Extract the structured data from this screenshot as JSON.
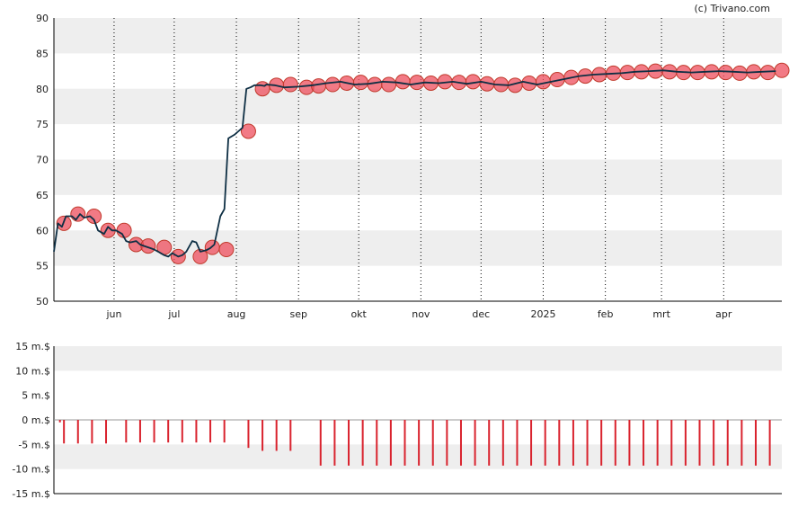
{
  "copyright": "(c) Trivano.com",
  "colors": {
    "band": "#eeeeee",
    "price_line": "#0e2f44",
    "marker_fill": "#ee4e5c",
    "marker_stroke": "#c0392b",
    "volume_bar": "#d9232e"
  },
  "chart_data": [
    {
      "type": "line",
      "name": "price",
      "ylim": [
        50,
        90
      ],
      "yticks": [
        "50",
        "55",
        "60",
        "65",
        "70",
        "75",
        "80",
        "85",
        "90"
      ],
      "grid": true,
      "x_range": [
        "2024-05-02",
        "2025-04-30"
      ],
      "month_ticks": [
        {
          "date": "2024-06-01",
          "label": "jun"
        },
        {
          "date": "2024-07-01",
          "label": "jul"
        },
        {
          "date": "2024-08-01",
          "label": "aug"
        },
        {
          "date": "2024-09-01",
          "label": "sep"
        },
        {
          "date": "2024-10-01",
          "label": "okt"
        },
        {
          "date": "2024-11-01",
          "label": "nov"
        },
        {
          "date": "2024-12-01",
          "label": "dec"
        },
        {
          "date": "2025-01-01",
          "label": "2025"
        },
        {
          "date": "2025-02-01",
          "label": "feb"
        },
        {
          "date": "2025-03-01",
          "label": "mrt"
        },
        {
          "date": "2025-04-01",
          "label": "apr"
        }
      ],
      "series": [
        {
          "x": [
            "2024-05-02",
            "2024-05-04",
            "2024-05-06",
            "2024-05-08",
            "2024-05-11",
            "2024-05-13",
            "2024-05-15",
            "2024-05-17",
            "2024-05-20",
            "2024-05-22",
            "2024-05-24",
            "2024-05-27",
            "2024-05-29",
            "2024-05-31",
            "2024-06-02",
            "2024-06-05",
            "2024-06-07",
            "2024-06-09",
            "2024-06-12",
            "2024-06-14",
            "2024-06-16",
            "2024-06-19",
            "2024-06-21",
            "2024-06-23",
            "2024-06-26",
            "2024-06-28",
            "2024-06-30",
            "2024-07-03",
            "2024-07-05",
            "2024-07-07",
            "2024-07-10",
            "2024-07-12",
            "2024-07-14",
            "2024-07-17",
            "2024-07-19",
            "2024-07-21",
            "2024-07-24",
            "2024-07-26",
            "2024-07-28",
            "2024-07-31",
            "2024-08-02",
            "2024-08-04",
            "2024-08-06",
            "2024-08-08",
            "2024-08-10",
            "2024-08-13",
            "2024-08-15",
            "2024-08-16",
            "2024-08-20",
            "2024-08-25",
            "2024-09-01",
            "2024-09-08",
            "2024-09-15",
            "2024-09-22",
            "2024-09-29",
            "2024-10-06",
            "2024-10-13",
            "2024-10-20",
            "2024-10-27",
            "2024-11-03",
            "2024-11-10",
            "2024-11-17",
            "2024-11-24",
            "2024-12-01",
            "2024-12-08",
            "2024-12-15",
            "2024-12-22",
            "2024-12-29",
            "2025-01-05",
            "2025-01-12",
            "2025-01-19",
            "2025-01-26",
            "2025-02-02",
            "2025-02-09",
            "2025-02-16",
            "2025-02-23",
            "2025-03-02",
            "2025-03-09",
            "2025-03-16",
            "2025-03-23",
            "2025-03-30",
            "2025-04-06",
            "2025-04-13",
            "2025-04-20",
            "2025-04-27"
          ],
          "y": [
            57,
            61,
            60.5,
            62,
            62,
            61.5,
            62.3,
            61.8,
            62,
            61.5,
            60,
            59.5,
            60.5,
            60,
            60,
            59.5,
            58.5,
            58.3,
            58.5,
            58,
            57.8,
            57.5,
            57.3,
            57,
            56.5,
            56.3,
            56.8,
            56.3,
            56.5,
            57,
            58.5,
            58.3,
            57,
            57.2,
            57.5,
            58,
            62,
            63,
            73,
            73.5,
            74,
            74.5,
            80,
            80.2,
            80.5,
            80.5,
            80.4,
            80.6,
            80.5,
            80.2,
            80.3,
            80.5,
            80.8,
            81,
            80.6,
            80.7,
            81,
            80.9,
            80.6,
            80.9,
            80.8,
            81,
            80.7,
            81,
            80.6,
            80.5,
            81,
            80.6,
            81,
            81.4,
            81.8,
            82,
            82.1,
            82.2,
            82.4,
            82.5,
            82.6,
            82.4,
            82.3,
            82.4,
            82.5,
            82.4,
            82.3,
            82.4,
            82.5
          ]
        }
      ],
      "markers": [
        {
          "x": "2024-05-07",
          "y": 61
        },
        {
          "x": "2024-05-14",
          "y": 62.3
        },
        {
          "x": "2024-05-22",
          "y": 62
        },
        {
          "x": "2024-05-29",
          "y": 60
        },
        {
          "x": "2024-06-06",
          "y": 60
        },
        {
          "x": "2024-06-12",
          "y": 58
        },
        {
          "x": "2024-06-18",
          "y": 57.8
        },
        {
          "x": "2024-06-26",
          "y": 57.6
        },
        {
          "x": "2024-07-03",
          "y": 56.3
        },
        {
          "x": "2024-07-14",
          "y": 56.3
        },
        {
          "x": "2024-07-20",
          "y": 57.6
        },
        {
          "x": "2024-07-27",
          "y": 57.3
        },
        {
          "x": "2024-08-07",
          "y": 74
        },
        {
          "x": "2024-08-14",
          "y": 80
        },
        {
          "x": "2024-08-21",
          "y": 80.5
        },
        {
          "x": "2024-08-28",
          "y": 80.6
        },
        {
          "x": "2024-09-05",
          "y": 80.2
        },
        {
          "x": "2024-09-11",
          "y": 80.4
        },
        {
          "x": "2024-09-18",
          "y": 80.6
        },
        {
          "x": "2024-09-25",
          "y": 80.8
        },
        {
          "x": "2024-10-02",
          "y": 80.9
        },
        {
          "x": "2024-10-09",
          "y": 80.6
        },
        {
          "x": "2024-10-16",
          "y": 80.6
        },
        {
          "x": "2024-10-23",
          "y": 81
        },
        {
          "x": "2024-10-30",
          "y": 80.9
        },
        {
          "x": "2024-11-06",
          "y": 80.8
        },
        {
          "x": "2024-11-13",
          "y": 81
        },
        {
          "x": "2024-11-20",
          "y": 80.9
        },
        {
          "x": "2024-11-27",
          "y": 81
        },
        {
          "x": "2024-12-04",
          "y": 80.7
        },
        {
          "x": "2024-12-11",
          "y": 80.6
        },
        {
          "x": "2024-12-18",
          "y": 80.5
        },
        {
          "x": "2024-12-25",
          "y": 80.8
        },
        {
          "x": "2025-01-01",
          "y": 81
        },
        {
          "x": "2025-01-08",
          "y": 81.3
        },
        {
          "x": "2025-01-15",
          "y": 81.6
        },
        {
          "x": "2025-01-22",
          "y": 81.8
        },
        {
          "x": "2025-01-29",
          "y": 82
        },
        {
          "x": "2025-02-05",
          "y": 82.2
        },
        {
          "x": "2025-02-12",
          "y": 82.3
        },
        {
          "x": "2025-02-19",
          "y": 82.4
        },
        {
          "x": "2025-02-26",
          "y": 82.5
        },
        {
          "x": "2025-03-05",
          "y": 82.4
        },
        {
          "x": "2025-03-12",
          "y": 82.3
        },
        {
          "x": "2025-03-19",
          "y": 82.3
        },
        {
          "x": "2025-03-26",
          "y": 82.4
        },
        {
          "x": "2025-04-02",
          "y": 82.3
        },
        {
          "x": "2025-04-09",
          "y": 82.2
        },
        {
          "x": "2025-04-16",
          "y": 82.4
        },
        {
          "x": "2025-04-23",
          "y": 82.3
        },
        {
          "x": "2025-04-30",
          "y": 82.6
        }
      ]
    },
    {
      "type": "bar",
      "name": "volume",
      "unit": "m.$",
      "ylim": [
        -15,
        15
      ],
      "yticks": [
        "15 m.$",
        "10 m.$",
        "5 m.$",
        "0 m.$",
        "-5 m.$",
        "-10 m.$",
        "-15 m.$"
      ],
      "grid": true,
      "x": [
        "2024-05-05",
        "2024-05-07",
        "2024-05-14",
        "2024-05-21",
        "2024-05-28",
        "2024-06-07",
        "2024-06-14",
        "2024-06-21",
        "2024-06-28",
        "2024-07-05",
        "2024-07-12",
        "2024-07-19",
        "2024-07-26",
        "2024-08-07",
        "2024-08-14",
        "2024-08-21",
        "2024-08-28",
        "2024-09-12",
        "2024-09-19",
        "2024-09-26",
        "2024-10-03",
        "2024-10-10",
        "2024-10-17",
        "2024-10-24",
        "2024-10-31",
        "2024-11-07",
        "2024-11-14",
        "2024-11-21",
        "2024-11-28",
        "2024-12-05",
        "2024-12-12",
        "2024-12-19",
        "2024-12-26",
        "2025-01-02",
        "2025-01-09",
        "2025-01-16",
        "2025-01-23",
        "2025-01-30",
        "2025-02-06",
        "2025-02-13",
        "2025-02-20",
        "2025-02-27",
        "2025-03-06",
        "2025-03-13",
        "2025-03-20",
        "2025-03-27",
        "2025-04-03",
        "2025-04-10",
        "2025-04-17",
        "2025-04-24"
      ],
      "values": [
        -0.5,
        -4.8,
        -4.8,
        -4.8,
        -4.8,
        -4.6,
        -4.6,
        -4.6,
        -4.6,
        -4.6,
        -4.6,
        -4.6,
        -4.6,
        -5.7,
        -6.3,
        -6.3,
        -6.3,
        -9.3,
        -9.3,
        -9.3,
        -9.3,
        -9.3,
        -9.3,
        -9.3,
        -9.3,
        -9.3,
        -9.3,
        -9.3,
        -9.3,
        -9.3,
        -9.3,
        -9.3,
        -9.3,
        -9.3,
        -9.3,
        -9.3,
        -9.3,
        -9.3,
        -9.3,
        -9.3,
        -9.3,
        -9.3,
        -9.3,
        -9.3,
        -9.3,
        -9.3,
        -9.3,
        -9.3,
        -9.3,
        -9.3
      ]
    }
  ]
}
